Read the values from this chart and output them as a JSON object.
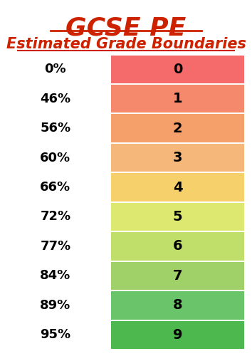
{
  "title": "GCSE PE",
  "subtitle": "Estimated Grade Boundaries",
  "title_color": "#cc2200",
  "grades": [
    0,
    1,
    2,
    3,
    4,
    5,
    6,
    7,
    8,
    9
  ],
  "percentages": [
    "0%",
    "46%",
    "56%",
    "60%",
    "66%",
    "72%",
    "77%",
    "84%",
    "89%",
    "95%"
  ],
  "colors": [
    "#f56b6b",
    "#f5896b",
    "#f5a06b",
    "#f5b87a",
    "#f5d06b",
    "#dce870",
    "#c0de6a",
    "#a0d068",
    "#6ac46a",
    "#4db84d"
  ],
  "bg_color": "#ffffff",
  "title_fontsize": 26,
  "subtitle_fontsize": 15,
  "pct_fontsize": 13,
  "grade_fontsize": 14
}
